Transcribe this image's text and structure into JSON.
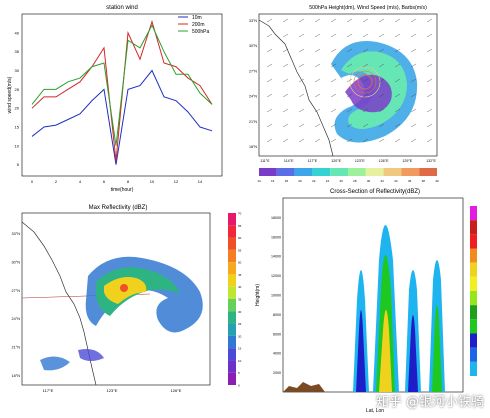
{
  "chart_data": [
    {
      "type": "line",
      "title": "station wind",
      "xlabel": "time(hour)",
      "ylabel": "wind speed(m/s)",
      "x": [
        0,
        1,
        2,
        3,
        4,
        5,
        6,
        7,
        8,
        9,
        10,
        11,
        12,
        13,
        14,
        15
      ],
      "xtick_labels": [
        "0",
        "",
        "2",
        "",
        "4",
        "",
        "6",
        "",
        "8",
        "",
        "10",
        "",
        "12",
        "",
        "14",
        ""
      ],
      "ytick_labels": [
        "5",
        "10",
        "15",
        "20",
        "25",
        "30",
        "35",
        "40"
      ],
      "ylim": [
        2,
        45
      ],
      "grid": false,
      "legend_position": "top-right",
      "series": [
        {
          "name": "10m",
          "color": "#1f2fbf",
          "values": [
            12.5,
            15,
            15.5,
            17,
            18.5,
            22,
            25,
            5,
            25,
            26,
            30,
            23,
            22,
            19,
            15,
            14
          ]
        },
        {
          "name": "200m",
          "color": "#d62728",
          "values": [
            20,
            23,
            23,
            25,
            27,
            31,
            36,
            6,
            40,
            33,
            43,
            32,
            31,
            28,
            26,
            21
          ]
        },
        {
          "name": "500hPa",
          "color": "#2ca02c",
          "values": [
            21,
            25,
            25,
            27,
            28,
            31,
            32,
            10,
            38,
            36,
            42,
            35,
            29,
            29,
            24,
            21
          ]
        }
      ]
    },
    {
      "type": "heatmap",
      "title": "500hPa Height(dm), Wind Speed (m/s), Barbs(m/s)",
      "xtick_labels": [
        "111°E",
        "114°E",
        "117°E",
        "120°E",
        "123°E",
        "126°E",
        "129°E",
        "132°E"
      ],
      "ytick_labels": [
        "33°N",
        "30°N",
        "27°N",
        "24°N",
        "21°N",
        "18°N"
      ],
      "colorbar_labels": [
        "14",
        "16",
        "18",
        "20",
        "22",
        "24",
        "26",
        "28",
        "30",
        "32",
        "34",
        "36",
        "38",
        "40"
      ],
      "colorbar_colors": [
        "#7a3cc8",
        "#5a6ee6",
        "#3ca6e6",
        "#34d2d2",
        "#66e6b4",
        "#9ef09a",
        "#e6f0a0",
        "#f0c880",
        "#f09a60",
        "#e06a48"
      ]
    },
    {
      "type": "heatmap",
      "title": "Max Reflectivity (dBZ)",
      "xtick_labels": [
        "117°E",
        "123°E",
        "126°E"
      ],
      "ytick_labels": [
        "33°N",
        "30°N",
        "27°N",
        "24°N",
        "21°N",
        "18°N"
      ],
      "colorbar_labels": [
        "70",
        "65",
        "60",
        "55",
        "50",
        "45",
        "40",
        "35",
        "30",
        "25",
        "20",
        "15",
        "10",
        "5",
        "0"
      ],
      "colorbar_colors": [
        "#e6196a",
        "#f0283c",
        "#f05028",
        "#f57d23",
        "#f5aa1e",
        "#f0d21e",
        "#bee632",
        "#64d25a",
        "#2db482",
        "#28a0b4",
        "#3278d2",
        "#4b4bd7",
        "#6e32c8",
        "#8c1eb4"
      ]
    },
    {
      "type": "heatmap",
      "title": "Cross-Section of Reflectivity(dBZ)",
      "xlabel": "Lat, Lon",
      "ylabel": "Height(m)",
      "ytick_labels": [
        "2000",
        "4000",
        "6000",
        "8000",
        "10000",
        "12000",
        "14000",
        "16000",
        "18000"
      ],
      "colorbar_colors": [
        "#e01ee0",
        "#c81e1e",
        "#f01e1e",
        "#f08c1e",
        "#f0d21e",
        "#f0f01e",
        "#96e61e",
        "#1ea01e",
        "#1ec81e",
        "#1e1ec8",
        "#1e64e6",
        "#1eb4f0"
      ]
    }
  ],
  "panels": {
    "line": {
      "title": "station wind",
      "xlabel": "time(hour)",
      "ylabel": "wind speed(m/s)",
      "legend": [
        "10m",
        "200m",
        "500hPa"
      ]
    },
    "map500": {
      "title": "500hPa Height(dm), Wind Speed (m/s), Barbs(m/s)"
    },
    "maxref": {
      "title": "Max Reflectivity (dBZ)"
    },
    "cross": {
      "title": "Cross-Section of Reflectivity(dBZ)",
      "xlabel": "Lat, Lon",
      "ylabel": "Height(m)"
    }
  },
  "watermark": "知乎 @银河小铁骑"
}
